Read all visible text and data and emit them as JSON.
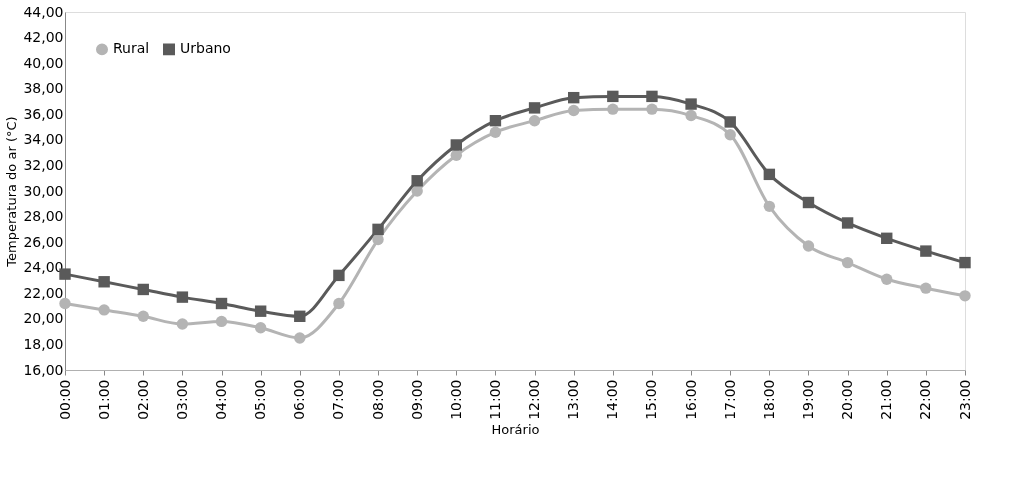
{
  "chart_data": {
    "type": "line",
    "xlabel": "Horário",
    "ylabel": "Temperatura do ar (°C)",
    "categories": [
      "00:00",
      "01:00",
      "02:00",
      "03:00",
      "04:00",
      "05:00",
      "06:00",
      "07:00",
      "08:00",
      "09:00",
      "10:00",
      "11:00",
      "12:00",
      "13:00",
      "14:00",
      "15:00",
      "16:00",
      "17:00",
      "18:00",
      "19:00",
      "20:00",
      "21:00",
      "22:00",
      "23:00"
    ],
    "series": [
      {
        "name": "Rural",
        "color": "#b4b4b4",
        "marker": "circle",
        "values": [
          21.2,
          20.7,
          20.2,
          19.6,
          19.8,
          19.3,
          18.5,
          21.2,
          26.2,
          30.0,
          32.8,
          34.6,
          35.5,
          36.3,
          36.4,
          36.4,
          35.9,
          34.4,
          28.8,
          25.7,
          24.4,
          23.1,
          22.4,
          21.8
        ]
      },
      {
        "name": "Urbano",
        "color": "#5a5a5a",
        "marker": "square",
        "values": [
          23.5,
          22.9,
          22.3,
          21.7,
          21.2,
          20.6,
          20.2,
          23.4,
          27.0,
          30.8,
          33.6,
          35.5,
          36.5,
          37.3,
          37.4,
          37.4,
          36.8,
          35.4,
          31.3,
          29.1,
          27.5,
          26.3,
          25.3,
          24.4
        ]
      }
    ],
    "ylim": [
      16,
      44
    ],
    "yticks": [
      {
        "value": 16,
        "label": "16,00"
      },
      {
        "value": 18,
        "label": "18,00"
      },
      {
        "value": 20,
        "label": "20,00"
      },
      {
        "value": 22,
        "label": "22,00"
      },
      {
        "value": 24,
        "label": "24,00"
      },
      {
        "value": 26,
        "label": "26,00"
      },
      {
        "value": 28,
        "label": "28,00"
      },
      {
        "value": 30,
        "label": "30,00"
      },
      {
        "value": 32,
        "label": "32,00"
      },
      {
        "value": 34,
        "label": "34,00"
      },
      {
        "value": 36,
        "label": "36,00"
      },
      {
        "value": 38,
        "label": "38,00"
      },
      {
        "value": 40,
        "label": "40,00"
      },
      {
        "value": 42,
        "label": "42,00"
      },
      {
        "value": 44,
        "label": "44,00"
      }
    ],
    "grid": false,
    "legend": "top left",
    "line_style": "solid"
  }
}
